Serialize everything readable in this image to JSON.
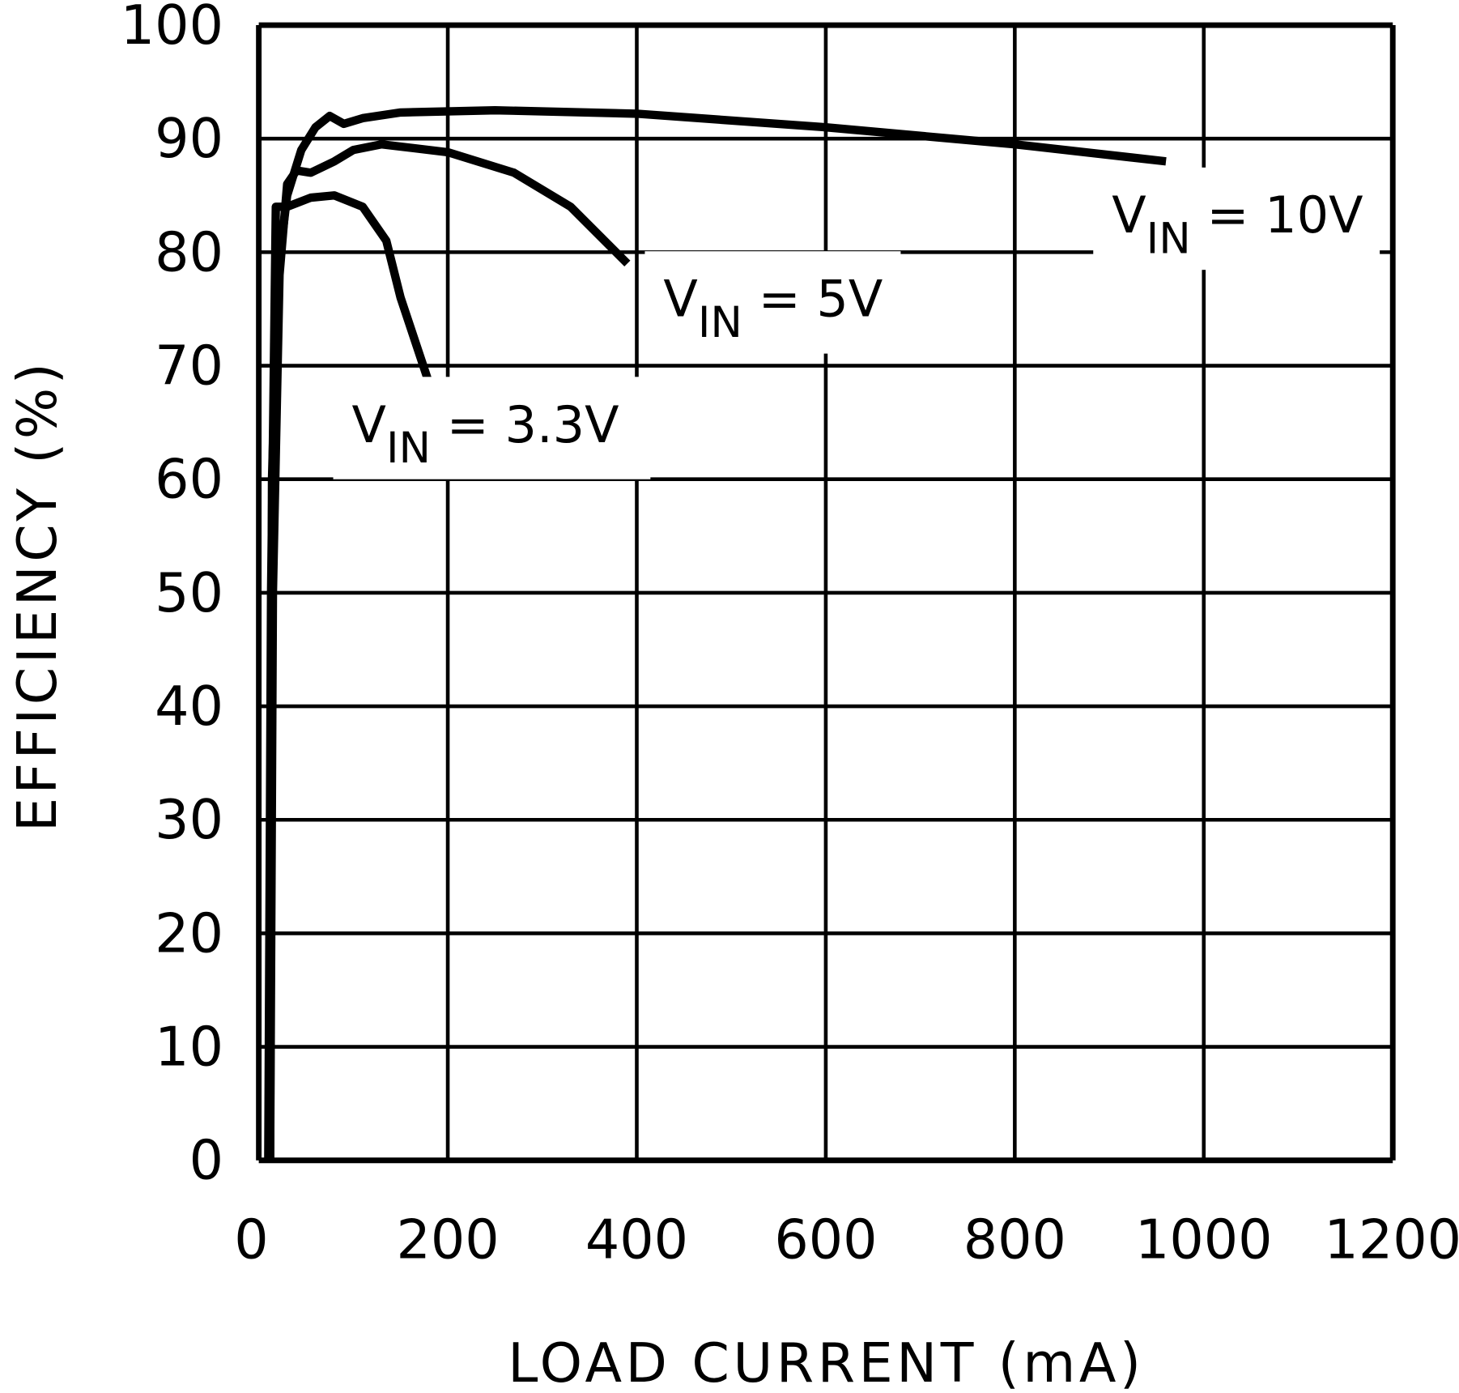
{
  "chart_data": {
    "type": "line",
    "title": "",
    "xlabel": "LOAD CURRENT (mA)",
    "ylabel": "EFFICIENCY (%)",
    "xlim": [
      0,
      1200
    ],
    "ylim": [
      0,
      100
    ],
    "xticks": [
      "0",
      "200",
      "400",
      "600",
      "800",
      "1000",
      "1200"
    ],
    "yticks": [
      "0",
      "10",
      "20",
      "30",
      "40",
      "50",
      "60",
      "70",
      "80",
      "90",
      "100"
    ],
    "grid": true,
    "series": [
      {
        "name": "VIN = 10V",
        "label_main": "V",
        "label_sub": "IN",
        "label_rest": " = 10V",
        "x": [
          12,
          14,
          20,
          30,
          45,
          60,
          75,
          90,
          110,
          150,
          250,
          400,
          600,
          800,
          960
        ],
        "y": [
          0,
          60,
          78,
          85,
          89,
          91,
          92,
          91.3,
          91.8,
          92.3,
          92.5,
          92.2,
          91,
          89.5,
          88
        ]
      },
      {
        "name": "VIN = 5V",
        "label_main": "V",
        "label_sub": "IN",
        "label_rest": " = 5V",
        "x": [
          12,
          15,
          22,
          30,
          40,
          55,
          80,
          100,
          130,
          200,
          270,
          330,
          390
        ],
        "y": [
          0,
          50,
          78,
          86,
          87.2,
          87,
          88,
          89,
          89.5,
          88.8,
          87,
          84,
          79
        ]
      },
      {
        "name": "VIN = 3.3V",
        "label_main": "V",
        "label_sub": "IN",
        "label_rest": " = 3.3V",
        "x": [
          10,
          13,
          18,
          30,
          55,
          80,
          110,
          135,
          150,
          180
        ],
        "y": [
          0,
          50,
          84,
          84,
          84.8,
          85,
          84,
          81,
          76,
          68.5
        ]
      }
    ]
  }
}
